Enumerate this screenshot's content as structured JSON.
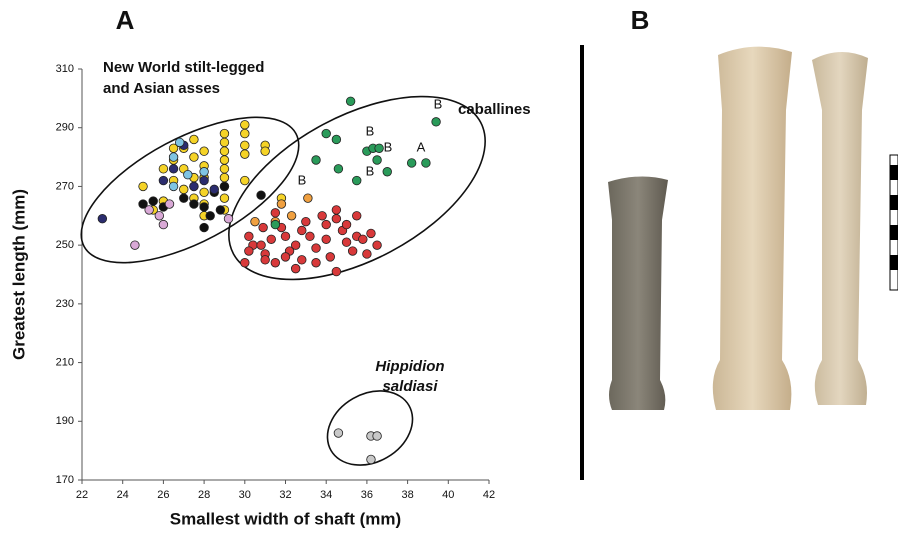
{
  "panel_labels": [
    "A",
    "B"
  ],
  "chart_data": {
    "type": "scatter",
    "x_label": "Smallest width of shaft (mm)",
    "y_label": "Greatest length (mm)",
    "xlim": [
      22,
      42
    ],
    "xticks": [
      22,
      24,
      26,
      28,
      30,
      32,
      34,
      36,
      38,
      40,
      42
    ],
    "ylim": [
      170,
      310
    ],
    "yticks": [
      170,
      190,
      210,
      230,
      250,
      270,
      290,
      310
    ],
    "annotations": [
      "New World stilt-legged",
      "and Asian asses",
      "caballines",
      "Hippidion",
      "saldiasi"
    ],
    "point_labels": [
      "B",
      "B",
      "B",
      "B",
      "A",
      "B"
    ],
    "series": [
      {
        "color": "#f5d327",
        "x": [
          25,
          25.5,
          26,
          26,
          26.5,
          26.5,
          26.5,
          27,
          27,
          27,
          27.5,
          27.5,
          27.5,
          27.5,
          28,
          28,
          28,
          28,
          28,
          28,
          29,
          29,
          29,
          29,
          29,
          29,
          29,
          29,
          29,
          30,
          30,
          30,
          30,
          30,
          31,
          31,
          31.8
        ],
        "values": [
          270,
          262,
          276,
          265,
          283,
          279,
          272,
          283,
          276,
          269,
          286,
          280,
          273,
          266,
          282,
          277,
          273,
          268,
          264,
          260,
          288,
          285,
          282,
          279,
          276,
          273,
          270,
          266,
          262,
          291,
          288,
          284,
          281,
          272,
          284,
          282,
          266
        ]
      },
      {
        "color": "#111111",
        "x": [
          25,
          25.5,
          26,
          27,
          27.5,
          28,
          28.5,
          29,
          28.8,
          28.3,
          28,
          30.8,
          27.5
        ],
        "values": [
          264,
          265,
          263,
          266,
          264,
          263,
          268,
          270,
          262,
          260,
          256,
          267,
          270
        ]
      },
      {
        "color": "#2b2c6e",
        "x": [
          23,
          26.5,
          27,
          27.5,
          28,
          28.5,
          26
        ],
        "values": [
          259,
          276,
          284,
          270,
          272,
          269,
          272
        ]
      },
      {
        "color": "#7fc4e3",
        "x": [
          26.8,
          26.5,
          26.5,
          27.2,
          28
        ],
        "values": [
          285,
          280,
          270,
          274,
          275
        ]
      },
      {
        "color": "#d9a9d6",
        "x": [
          24.6,
          25.3,
          25.8,
          26,
          26.3,
          29.2
        ],
        "values": [
          250,
          262,
          260,
          257,
          264,
          259
        ]
      },
      {
        "color": "#f0a040",
        "x": [
          31.8,
          31.5,
          32.3,
          33.1,
          30.5
        ],
        "values": [
          264,
          258,
          260,
          266,
          258
        ]
      },
      {
        "color": "#d8393a",
        "x": [
          30.2,
          30.4,
          30.8,
          31,
          31.3,
          31.5,
          31.8,
          32,
          32.2,
          32.5,
          32.8,
          33,
          33.2,
          33.5,
          33.8,
          34,
          34,
          34.2,
          34.5,
          34.5,
          34.8,
          35,
          35,
          35.3,
          35.5,
          35.8,
          36,
          36.2,
          36.5,
          35.5,
          31,
          31.5,
          32,
          32.5,
          30,
          34.5,
          33.5,
          32.8,
          30.9,
          30.2
        ],
        "values": [
          253,
          250,
          250,
          247,
          252,
          261,
          256,
          253,
          248,
          250,
          255,
          258,
          253,
          249,
          260,
          257,
          252,
          246,
          262,
          259,
          255,
          251,
          257,
          248,
          253,
          252,
          247,
          254,
          250,
          260,
          245,
          244,
          246,
          242,
          244,
          241,
          244,
          245,
          256,
          248
        ]
      },
      {
        "color": "#2a9b5a",
        "x": [
          31.5,
          34,
          34.5,
          33.5,
          34.6,
          35.5,
          36,
          36.3,
          36.6,
          36.5,
          37,
          38.2,
          38.9,
          39.4,
          35.2
        ],
        "values": [
          257,
          288,
          286,
          279,
          276,
          272,
          282,
          283,
          283,
          279,
          275,
          278,
          278,
          292,
          299
        ]
      },
      {
        "color": "#c8c8c8",
        "x": [
          34.6,
          36.2,
          36.5,
          36.2
        ],
        "values": [
          186,
          185,
          185,
          177
        ]
      }
    ]
  }
}
